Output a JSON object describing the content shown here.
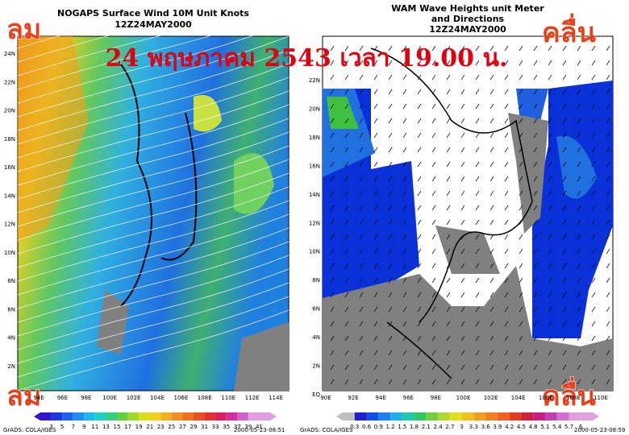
{
  "banner": "24 พฤษภาคม 2543 เวลา 19.00 น.",
  "corner_labels": {
    "wind_top": "ลม",
    "wind_bottom": "ลม",
    "wave_top": "คลื่น",
    "wave_bottom": "คลื่น"
  },
  "wind_map": {
    "title": "NOGAPS Surface Wind 10M Unit Knots",
    "time": "12Z24MAY2000",
    "lat_labels": [
      "24N",
      "22N",
      "20N",
      "18N",
      "16N",
      "14N",
      "12N",
      "10N",
      "8N",
      "6N",
      "4N",
      "2N"
    ],
    "lon_labels": [
      "94E",
      "96E",
      "98E",
      "100E",
      "102E",
      "104E",
      "106E",
      "108E",
      "110E",
      "112E",
      "114E"
    ],
    "colorbar_labels": [
      "3",
      "5",
      "7",
      "9",
      "11",
      "13",
      "15",
      "17",
      "19",
      "21",
      "23",
      "25",
      "27",
      "29",
      "31",
      "33",
      "35",
      "37",
      "39",
      "41"
    ],
    "credit": "GrADS: COLA/IGES",
    "timestamp": "2000-05-23-08:51"
  },
  "wave_map": {
    "title": "WAM Wave Heights unit Meter",
    "subtitle": "and Directions",
    "time": "12Z24MAY2000",
    "lat_labels": [
      "22N",
      "20N",
      "18N",
      "16N",
      "14N",
      "12N",
      "10N",
      "8N",
      "6N",
      "4N",
      "2N",
      "EQ"
    ],
    "lon_labels": [
      "90E",
      "92E",
      "94E",
      "96E",
      "98E",
      "100E",
      "102E",
      "104E",
      "106E",
      "108E",
      "110E"
    ],
    "colorbar_labels": [
      "0.3",
      "0.6",
      "0.9",
      "1.2",
      "1.5",
      "1.8",
      "2.1",
      "2.4",
      "2.7",
      "3",
      "3.3",
      "3.6",
      "3.9",
      "4.2",
      "4.5",
      "4.8",
      "5.1",
      "5.4",
      "5.7",
      "6"
    ],
    "credit": "GrADS: COLA/IGES",
    "timestamp": "2000-05-23-08:59"
  }
}
